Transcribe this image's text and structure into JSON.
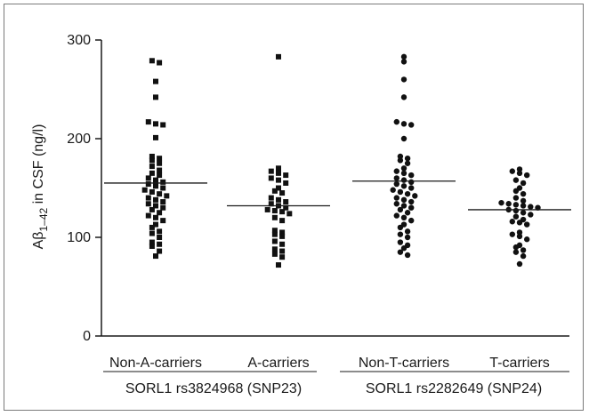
{
  "chart_data": {
    "type": "scatter",
    "ylabel": {
      "prefix": "Aβ",
      "subscript": "1–42",
      "suffix": " in CSF (ng/l)"
    },
    "ylim": [
      0,
      300
    ],
    "yticks": [
      0,
      100,
      200,
      300
    ],
    "grid": false,
    "categories": [
      "Non-A-carriers",
      "A-carriers",
      "Non-T-carriers",
      "T-carriers"
    ],
    "groups": [
      {
        "label": "SORL1 rs3824968 (SNP23)",
        "categories": [
          "Non-A-carriers",
          "A-carriers"
        ]
      },
      {
        "label": "SORL1 rs2282649 (SNP24)",
        "categories": [
          "Non-T-carriers",
          "T-carriers"
        ]
      }
    ],
    "series": [
      {
        "category": "Non-A-carriers",
        "marker": "square",
        "mean": 155,
        "values": [
          279,
          277,
          258,
          242,
          217,
          215,
          214,
          201,
          182,
          180,
          178,
          175,
          172,
          168,
          165,
          163,
          160,
          158,
          156,
          154,
          152,
          150,
          148,
          146,
          144,
          142,
          140,
          138,
          136,
          134,
          132,
          130,
          128,
          125,
          122,
          120,
          117,
          113,
          110,
          106,
          104,
          100,
          95,
          93,
          91,
          86,
          81
        ]
      },
      {
        "category": "A-carriers",
        "marker": "square",
        "mean": 132,
        "values": [
          283,
          170,
          167,
          165,
          163,
          160,
          158,
          155,
          150,
          147,
          145,
          140,
          138,
          136,
          134,
          132,
          130,
          128,
          127,
          126,
          124,
          120,
          117,
          107,
          105,
          103,
          101,
          96,
          93,
          88,
          86,
          83,
          80,
          72
        ]
      },
      {
        "category": "Non-T-carriers",
        "marker": "circle",
        "mean": 157,
        "values": [
          283,
          278,
          260,
          242,
          217,
          215,
          214,
          200,
          182,
          180,
          178,
          175,
          170,
          167,
          165,
          163,
          160,
          158,
          156,
          154,
          152,
          150,
          148,
          146,
          144,
          142,
          140,
          138,
          136,
          134,
          132,
          130,
          128,
          125,
          122,
          120,
          117,
          113,
          110,
          106,
          103,
          100,
          95,
          92,
          89,
          85,
          82
        ]
      },
      {
        "category": "T-carriers",
        "marker": "circle",
        "mean": 128,
        "values": [
          169,
          167,
          165,
          163,
          158,
          155,
          150,
          147,
          144,
          140,
          137,
          135,
          134,
          133,
          132,
          131,
          130,
          128,
          127,
          125,
          123,
          121,
          118,
          116,
          115,
          113,
          105,
          103,
          101,
          98,
          92,
          90,
          87,
          85,
          81,
          73
        ]
      }
    ]
  }
}
